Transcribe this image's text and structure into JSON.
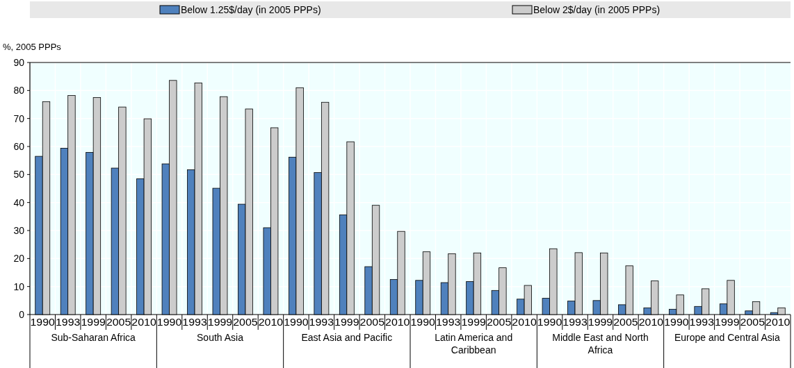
{
  "chart_data": {
    "type": "bar",
    "ylabel": "%, 2005 PPPs",
    "categories": [
      "1990",
      "1993",
      "1999",
      "2005",
      "2010",
      "1990",
      "1993",
      "1999",
      "2005",
      "2010",
      "1990",
      "1993",
      "1999",
      "2005",
      "2010",
      "1990",
      "1993",
      "1999",
      "2005",
      "2010",
      "1990",
      "1993",
      "1999",
      "2005",
      "2010",
      "1990",
      "1993",
      "1999",
      "2005",
      "2010"
    ],
    "series": [
      {
        "name": "Below 1.25$/day (in 2005 PPPs)",
        "color": "#4f81bd",
        "values": [
          56.5,
          59.4,
          57.9,
          52.3,
          48.5,
          53.8,
          51.7,
          45.1,
          39.4,
          31.0,
          56.2,
          50.7,
          35.6,
          17.1,
          12.5,
          12.2,
          11.4,
          11.8,
          8.6,
          5.5,
          5.8,
          4.8,
          5.0,
          3.5,
          2.4,
          1.9,
          2.9,
          3.8,
          1.3,
          0.7
        ]
      },
      {
        "name": "Below 2$/day (in 2005 PPPs)",
        "color": "#cccccc",
        "values": [
          76.0,
          78.2,
          77.5,
          74.1,
          69.9,
          83.6,
          82.7,
          77.8,
          73.4,
          66.7,
          81.0,
          75.8,
          61.7,
          39.0,
          29.7,
          22.4,
          21.7,
          22.0,
          16.7,
          10.4,
          23.5,
          22.1,
          22.0,
          17.4,
          12.0,
          7.0,
          9.2,
          12.2,
          4.6,
          2.4
        ]
      }
    ],
    "annotations": [
      "Sub-Saharan Africa",
      "South Asia",
      "East Asia and Pacific",
      "Latin America and Caribbean",
      "Middle East and North Africa",
      "Europe and Central Asia"
    ],
    "ylim": [
      0,
      90
    ],
    "yticks": [
      0,
      10,
      20,
      30,
      40,
      50,
      60,
      70,
      80,
      90
    ],
    "grid": true,
    "legend": "top"
  }
}
